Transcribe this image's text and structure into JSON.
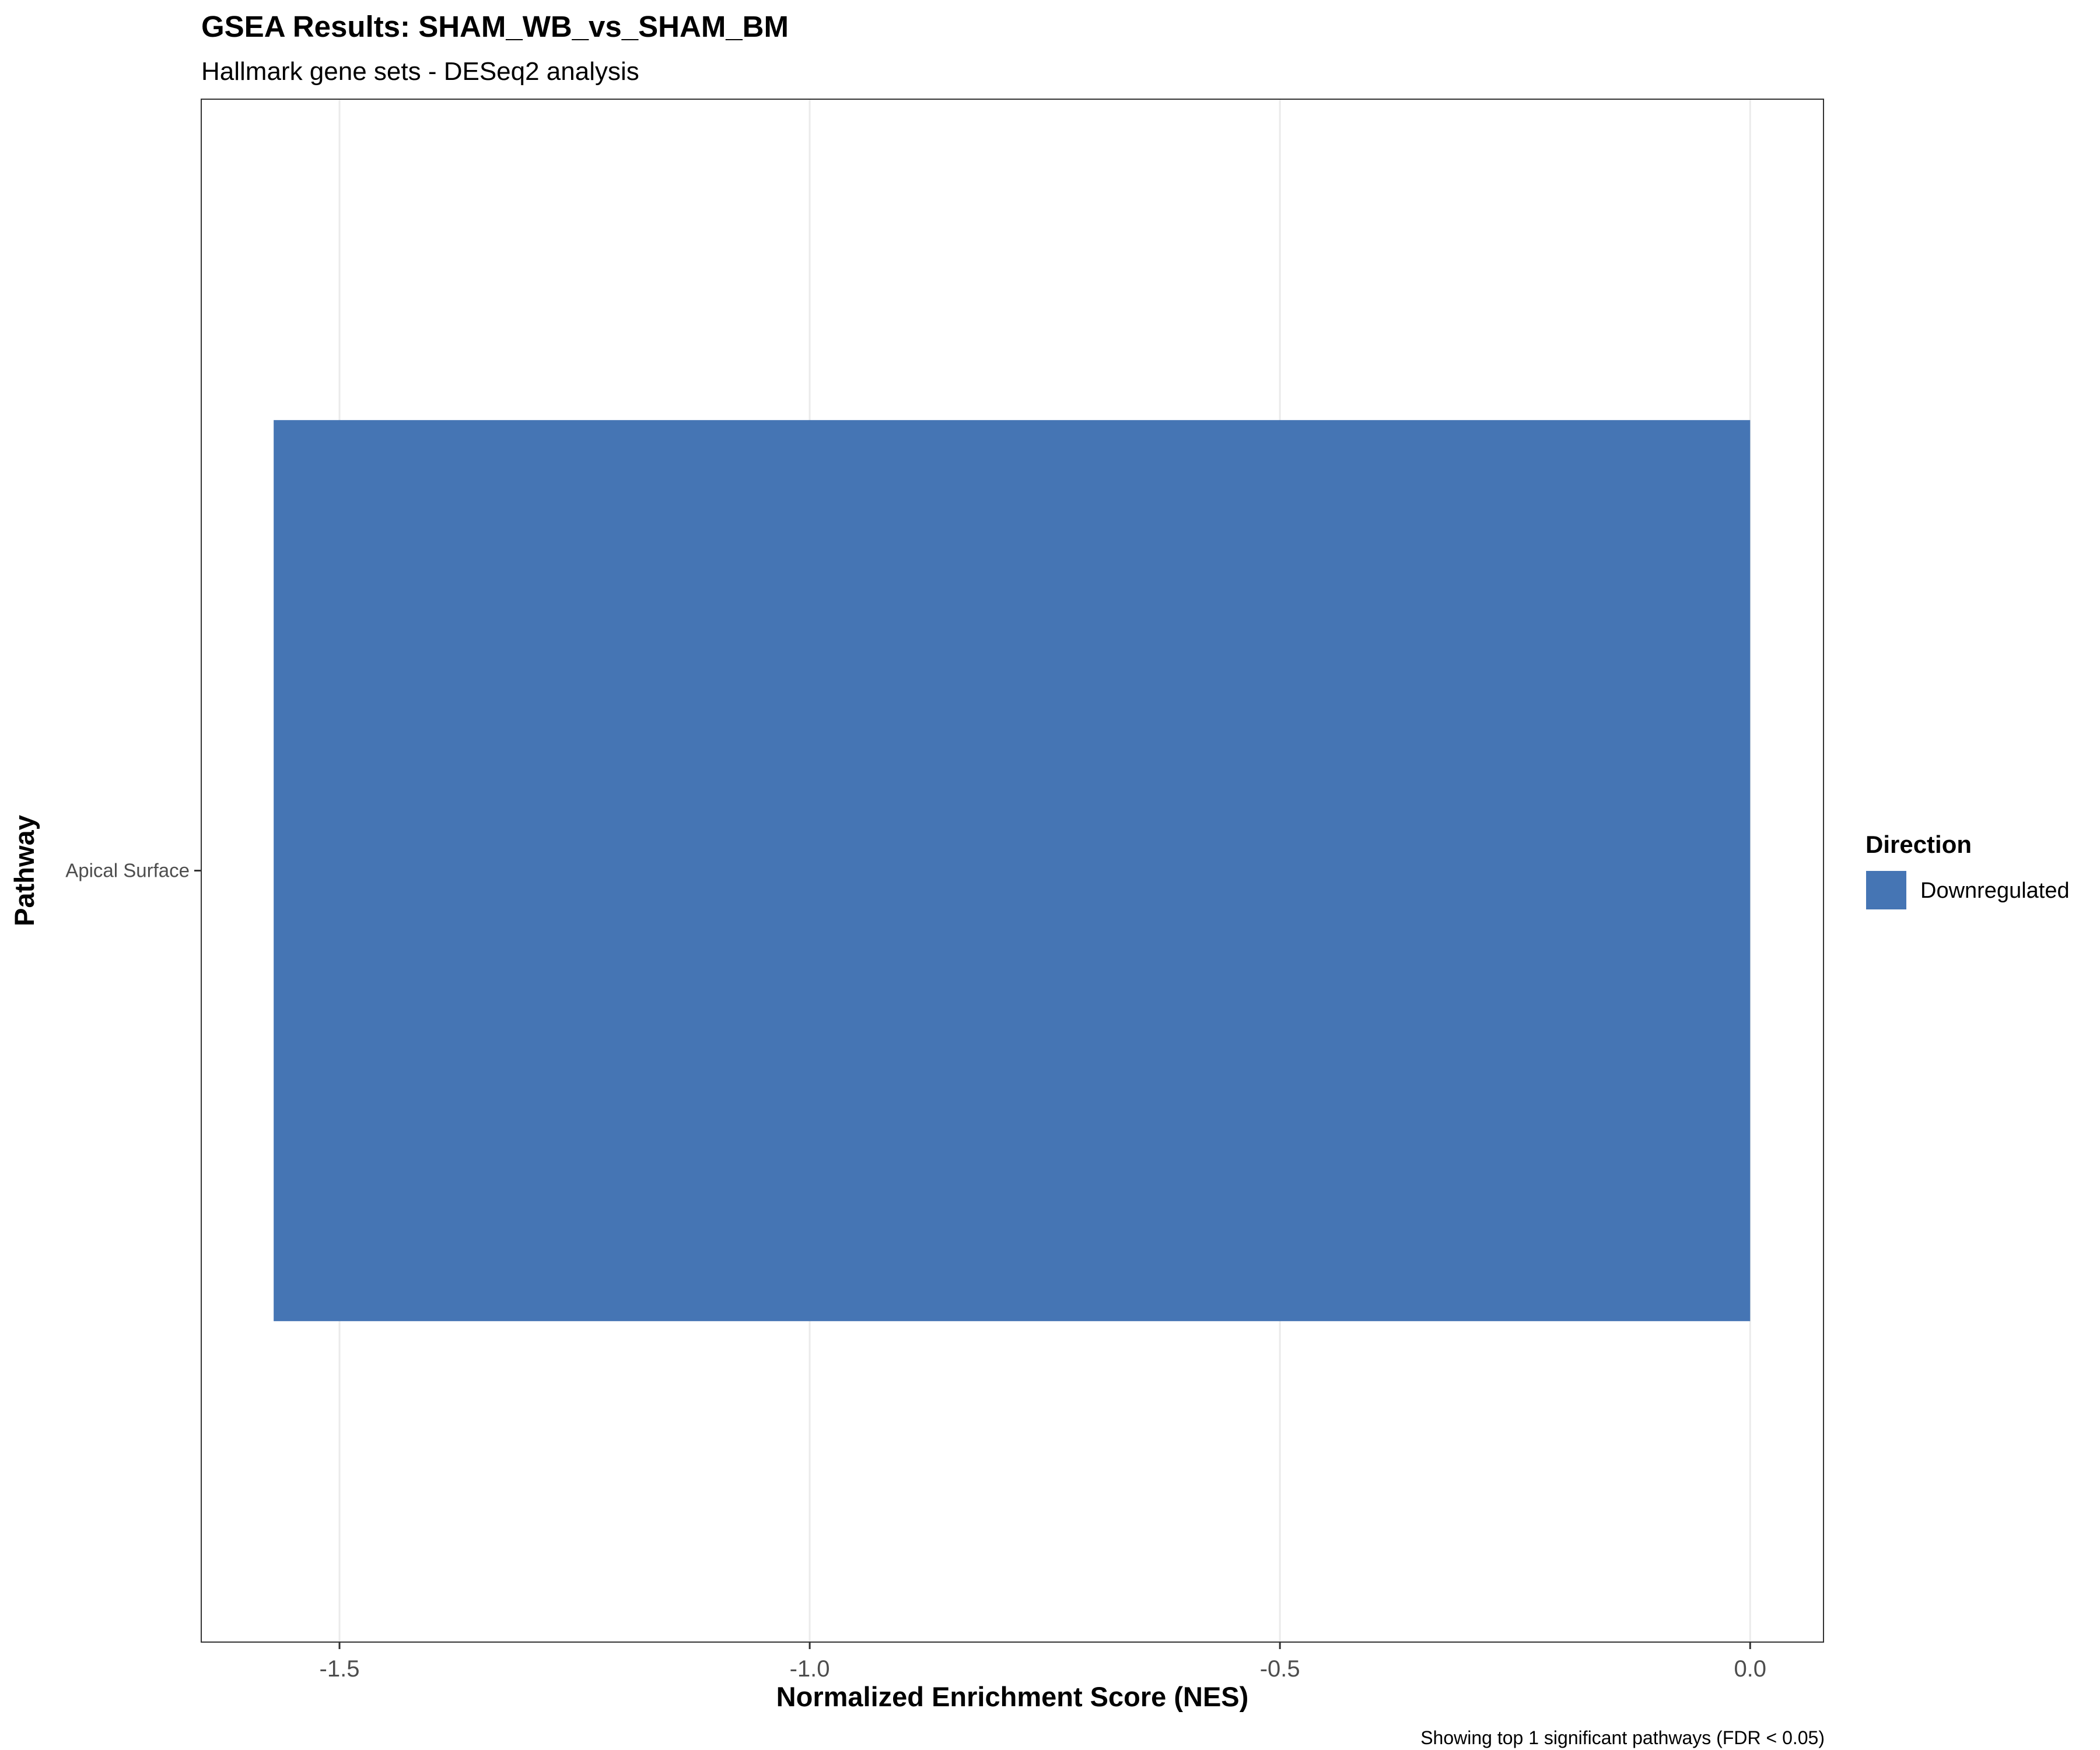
{
  "colors": {
    "downregulated": "#4575b4",
    "grid": "#ebebeb",
    "panel_border": "#333333",
    "tick": "#333333"
  },
  "chart_data": {
    "type": "bar",
    "orientation": "horizontal",
    "title": "GSEA Results: SHAM_WB_vs_SHAM_BM",
    "subtitle": "Hallmark gene sets - DESeq2 analysis",
    "xlabel": "Normalized Enrichment Score (NES)",
    "ylabel": "Pathway",
    "caption": "Showing top 1 significant pathways (FDR < 0.05)",
    "categories": [
      "Apical Surface"
    ],
    "values": [
      -1.57
    ],
    "direction": [
      "Downregulated"
    ],
    "xlim": [
      -1.647,
      0.078
    ],
    "xticks": [
      -1.5,
      -1.0,
      -0.5,
      0.0
    ],
    "xtick_labels": [
      "-1.5",
      "-1.0",
      "-0.5",
      "0.0"
    ],
    "grid": true,
    "legend": {
      "title": "Direction",
      "placement": "right",
      "items": [
        {
          "label": "Downregulated",
          "color": "#4575b4"
        }
      ]
    }
  }
}
